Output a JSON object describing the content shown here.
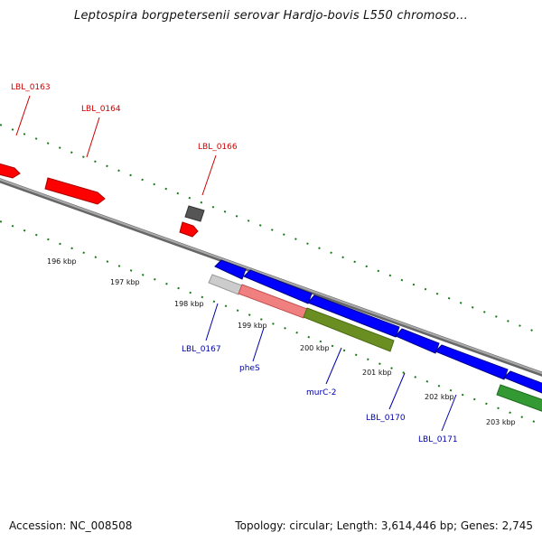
{
  "title": "Leptospira borgpetersenii serovar Hardjo-bovis L550 chromoso...",
  "footer": {
    "accession": "Accession: NC_008508",
    "summary": "Topology: circular; Length: 3,614,446 bp; Genes: 2,745"
  },
  "colors": {
    "forward_gene": "#ff0000",
    "reverse_gene": "#0000ff",
    "green_gene": "#339933",
    "olive_gene": "#6b8e23",
    "pink_gene": "#f08080",
    "gray_gene": "#666666",
    "lightgray_gene": "#cccccc",
    "backbone": "#808080",
    "tick": "#1a7a1a",
    "forward_label": "#cc0000",
    "reverse_label": "#0000aa"
  },
  "scale_labels": [
    "196 kbp",
    "197 kbp",
    "198 kbp",
    "199 kbp",
    "200 kbp",
    "201 kbp",
    "202 kbp",
    "203 kbp"
  ],
  "gene_labels": {
    "forward": [
      "LBL_0163",
      "LBL_0164",
      "LBL_0166"
    ],
    "reverse": [
      "LBL_0167",
      "pheS",
      "murC-2",
      "LBL_0170",
      "LBL_0171"
    ]
  }
}
